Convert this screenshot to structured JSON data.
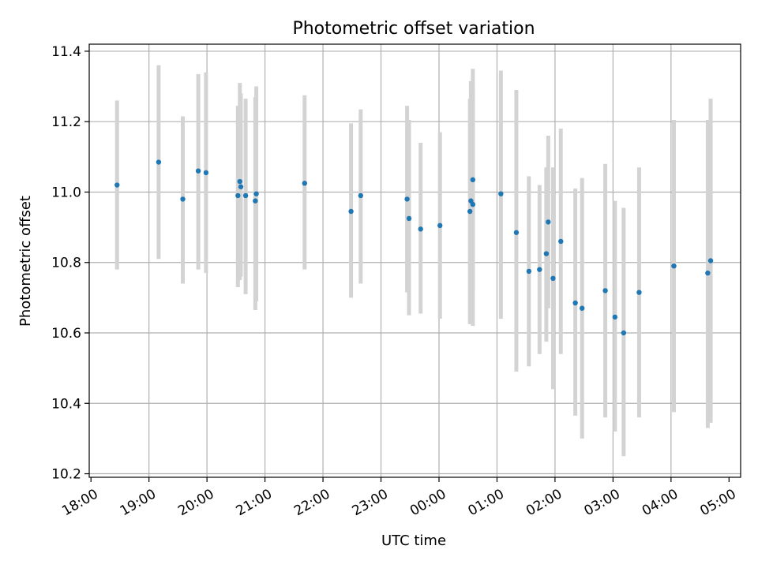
{
  "chart_data": {
    "type": "scatter",
    "title": "Photometric offset variation",
    "xlabel": "UTC time",
    "ylabel": "Photometric offset",
    "x_ticks": [
      "18:00",
      "19:00",
      "20:00",
      "21:00",
      "22:00",
      "23:00",
      "00:00",
      "01:00",
      "02:00",
      "03:00",
      "04:00",
      "05:00"
    ],
    "y_ticks": [
      "10.2",
      "10.4",
      "10.6",
      "10.8",
      "11.0",
      "11.2",
      "11.4"
    ],
    "ylim": [
      10.19,
      11.42
    ],
    "xlim_hours": [
      17.97,
      29.2
    ],
    "grid": true,
    "marker_color": "#1f77b4",
    "errorbar_color": "#d3d3d3",
    "points": [
      {
        "time": "18:27",
        "y": 11.02,
        "lo": 10.78,
        "hi": 11.26
      },
      {
        "time": "19:10",
        "y": 11.085,
        "lo": 10.81,
        "hi": 11.36
      },
      {
        "time": "19:35",
        "y": 10.98,
        "lo": 10.74,
        "hi": 11.215
      },
      {
        "time": "19:51",
        "y": 11.06,
        "lo": 10.78,
        "hi": 11.335
      },
      {
        "time": "19:59",
        "y": 11.055,
        "lo": 10.77,
        "hi": 11.34
      },
      {
        "time": "20:32",
        "y": 10.99,
        "lo": 10.73,
        "hi": 11.245
      },
      {
        "time": "20:34",
        "y": 11.03,
        "lo": 10.75,
        "hi": 11.31
      },
      {
        "time": "20:35",
        "y": 11.015,
        "lo": 10.76,
        "hi": 11.28
      },
      {
        "time": "20:40",
        "y": 10.99,
        "lo": 10.71,
        "hi": 11.265
      },
      {
        "time": "20:50",
        "y": 10.975,
        "lo": 10.665,
        "hi": 11.27
      },
      {
        "time": "20:51",
        "y": 10.995,
        "lo": 10.69,
        "hi": 11.3
      },
      {
        "time": "21:41",
        "y": 11.025,
        "lo": 10.78,
        "hi": 11.275
      },
      {
        "time": "22:29",
        "y": 10.945,
        "lo": 10.7,
        "hi": 11.195
      },
      {
        "time": "22:39",
        "y": 10.99,
        "lo": 10.74,
        "hi": 11.235
      },
      {
        "time": "23:27",
        "y": 10.98,
        "lo": 10.715,
        "hi": 11.245
      },
      {
        "time": "23:29",
        "y": 10.925,
        "lo": 10.65,
        "hi": 11.205
      },
      {
        "time": "23:41",
        "y": 10.895,
        "lo": 10.655,
        "hi": 11.14
      },
      {
        "time": "00:01",
        "y": 10.905,
        "lo": 10.64,
        "hi": 11.17
      },
      {
        "time": "00:32",
        "y": 10.945,
        "lo": 10.625,
        "hi": 11.265
      },
      {
        "time": "00:33",
        "y": 10.975,
        "lo": 10.64,
        "hi": 11.315
      },
      {
        "time": "00:35",
        "y": 11.035,
        "lo": 10.72,
        "hi": 11.35
      },
      {
        "time": "00:35",
        "y": 10.965,
        "lo": 10.62,
        "hi": 11.3
      },
      {
        "time": "01:04",
        "y": 10.995,
        "lo": 10.64,
        "hi": 11.345
      },
      {
        "time": "01:20",
        "y": 10.885,
        "lo": 10.49,
        "hi": 11.29
      },
      {
        "time": "01:33",
        "y": 10.775,
        "lo": 10.505,
        "hi": 11.045
      },
      {
        "time": "01:44",
        "y": 10.78,
        "lo": 10.54,
        "hi": 11.02
      },
      {
        "time": "01:51",
        "y": 10.825,
        "lo": 10.575,
        "hi": 11.07
      },
      {
        "time": "01:53",
        "y": 10.915,
        "lo": 10.67,
        "hi": 11.16
      },
      {
        "time": "01:58",
        "y": 10.755,
        "lo": 10.44,
        "hi": 11.07
      },
      {
        "time": "02:06",
        "y": 10.86,
        "lo": 10.54,
        "hi": 11.18
      },
      {
        "time": "02:21",
        "y": 10.685,
        "lo": 10.365,
        "hi": 11.01
      },
      {
        "time": "02:28",
        "y": 10.67,
        "lo": 10.3,
        "hi": 11.04
      },
      {
        "time": "02:52",
        "y": 10.72,
        "lo": 10.36,
        "hi": 11.08
      },
      {
        "time": "03:02",
        "y": 10.645,
        "lo": 10.32,
        "hi": 10.975
      },
      {
        "time": "03:11",
        "y": 10.6,
        "lo": 10.25,
        "hi": 10.955
      },
      {
        "time": "03:27",
        "y": 10.715,
        "lo": 10.36,
        "hi": 11.07
      },
      {
        "time": "04:03",
        "y": 10.79,
        "lo": 10.375,
        "hi": 11.205
      },
      {
        "time": "04:38",
        "y": 10.77,
        "lo": 10.33,
        "hi": 11.205
      },
      {
        "time": "04:41",
        "y": 10.805,
        "lo": 10.345,
        "hi": 11.265
      }
    ]
  }
}
